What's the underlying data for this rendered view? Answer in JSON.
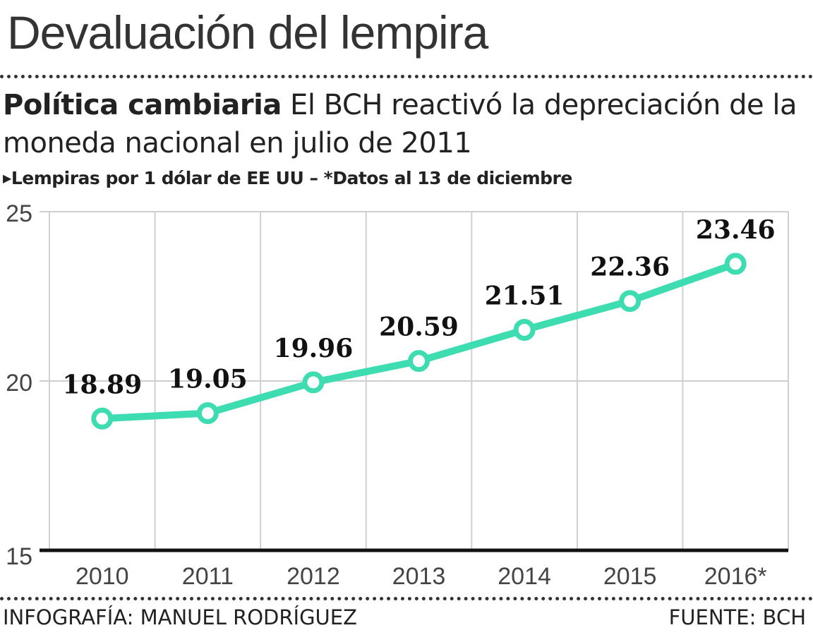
{
  "title": "Devaluación del lempira",
  "subtitle_bold": "Política cambiaria",
  "subtitle_rest": " El BCH reactivó la depreciación de la moneda nacional en julio de 2011",
  "note": "Lempiras por 1 dólar de EE UU – *Datos al 13 de diciembre",
  "credit": "INFOGRAFÍA: MANUEL RODRÍGUEZ",
  "source": "FUENTE: BCH",
  "colors": {
    "line": "#3ddcb1"
  },
  "chart_data": {
    "type": "line",
    "categories": [
      "2010",
      "2011",
      "2012",
      "2013",
      "2014",
      "2015",
      "2016*"
    ],
    "series": [
      {
        "values": [
          18.89,
          19.05,
          19.96,
          20.59,
          21.51,
          22.36,
          23.46
        ]
      }
    ],
    "data_labels": [
      "18.89",
      "19.05",
      "19.96",
      "20.59",
      "21.51",
      "22.36",
      "23.46"
    ],
    "ylim": [
      15,
      25
    ],
    "yticks": [
      15,
      20,
      25
    ],
    "grid": true,
    "xlabel": "",
    "ylabel": ""
  }
}
